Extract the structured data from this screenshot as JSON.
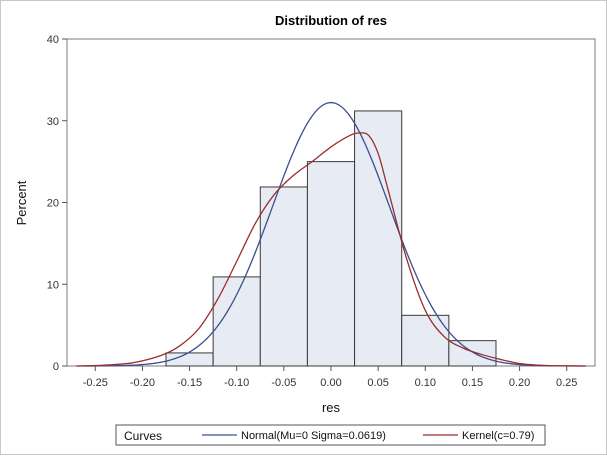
{
  "chart_data": {
    "type": "bar",
    "title": "Distribution of res",
    "xlabel": "res",
    "ylabel": "Percent",
    "xlim": [
      -0.28,
      0.28
    ],
    "ylim": [
      0,
      40
    ],
    "xticks": [
      -0.25,
      -0.2,
      -0.15,
      -0.1,
      -0.05,
      0.0,
      0.05,
      0.1,
      0.15,
      0.2,
      0.25
    ],
    "xtick_labels": [
      "-0.25",
      "-0.20",
      "-0.15",
      "-0.10",
      "-0.05",
      "0.00",
      "0.05",
      "0.10",
      "0.15",
      "0.20",
      "0.25"
    ],
    "yticks": [
      0,
      10,
      20,
      30,
      40
    ],
    "ytick_labels": [
      "0",
      "10",
      "20",
      "30",
      "40"
    ],
    "bin_width": 0.05,
    "bins": [
      {
        "center": -0.15,
        "value": 1.6
      },
      {
        "center": -0.1,
        "value": 10.9
      },
      {
        "center": -0.05,
        "value": 21.9
      },
      {
        "center": 0.0,
        "value": 25.0
      },
      {
        "center": 0.05,
        "value": 31.2
      },
      {
        "center": 0.1,
        "value": 6.2
      },
      {
        "center": 0.15,
        "value": 3.1
      }
    ],
    "bar_fill": "#e7ebf4",
    "bar_stroke": "#3a3a3a",
    "curves": [
      {
        "name": "Normal(Mu=0 Sigma=0.0619)",
        "kind": "normal",
        "mu": 0,
        "sigma": 0.0619,
        "color": "#3b4f8f"
      },
      {
        "name": "Kernel(c=0.79)",
        "kind": "kernel",
        "color": "#9a2e2e",
        "x": [
          -0.27,
          -0.24,
          -0.21,
          -0.18,
          -0.16,
          -0.14,
          -0.12,
          -0.1,
          -0.08,
          -0.06,
          -0.04,
          -0.02,
          0.0,
          0.02,
          0.03,
          0.04,
          0.05,
          0.06,
          0.08,
          0.1,
          0.12,
          0.14,
          0.16,
          0.18,
          0.2,
          0.22,
          0.24,
          0.27
        ],
        "y": [
          0.0,
          0.1,
          0.4,
          1.3,
          2.5,
          4.6,
          8.2,
          12.8,
          17.5,
          21.0,
          23.3,
          25.0,
          26.8,
          28.2,
          28.5,
          28.2,
          26.0,
          21.8,
          13.2,
          6.8,
          3.6,
          2.2,
          1.4,
          0.8,
          0.3,
          0.1,
          0.03,
          0.0
        ]
      }
    ],
    "legend": {
      "title": "Curves",
      "placement": "bottom"
    }
  }
}
